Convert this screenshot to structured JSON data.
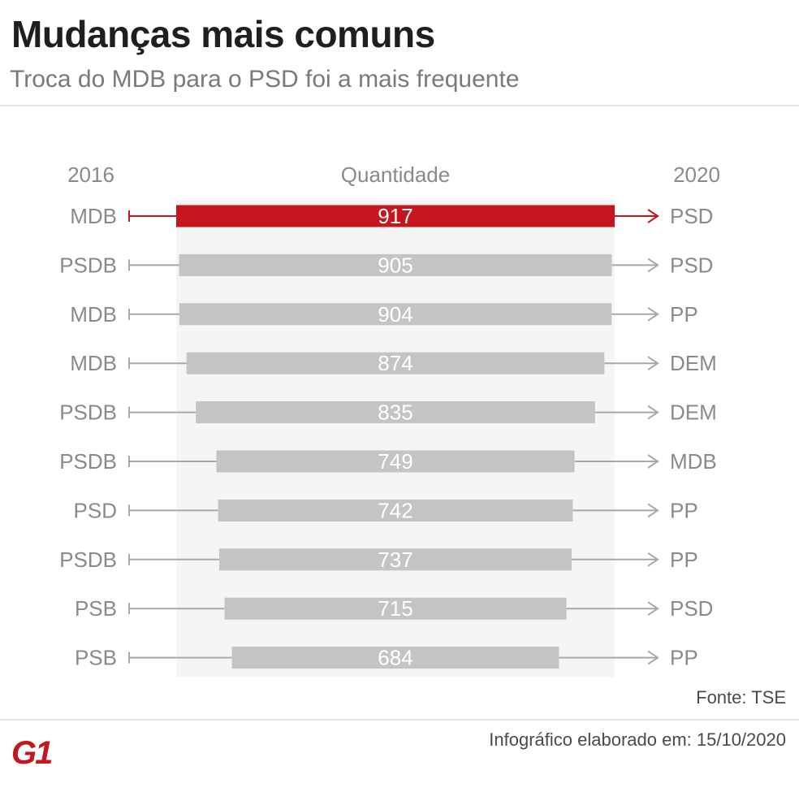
{
  "header": {
    "title": "Mudanças mais comuns",
    "subtitle": "Troca do MDB para o PSD foi a mais frequente"
  },
  "chart_data": {
    "type": "bar",
    "column_headers": {
      "left": "2016",
      "center": "Quantidade",
      "right": "2020"
    },
    "rows": [
      {
        "from": "MDB",
        "to": "PSD",
        "value": 917,
        "highlight": true
      },
      {
        "from": "PSDB",
        "to": "PSD",
        "value": 905,
        "highlight": false
      },
      {
        "from": "MDB",
        "to": "PP",
        "value": 904,
        "highlight": false
      },
      {
        "from": "MDB",
        "to": "DEM",
        "value": 874,
        "highlight": false
      },
      {
        "from": "PSDB",
        "to": "DEM",
        "value": 835,
        "highlight": false
      },
      {
        "from": "PSDB",
        "to": "MDB",
        "value": 749,
        "highlight": false
      },
      {
        "from": "PSD",
        "to": "PP",
        "value": 742,
        "highlight": false
      },
      {
        "from": "PSDB",
        "to": "PP",
        "value": 737,
        "highlight": false
      },
      {
        "from": "PSB",
        "to": "PSD",
        "value": 715,
        "highlight": false
      },
      {
        "from": "PSB",
        "to": "PP",
        "value": 684,
        "highlight": false
      }
    ],
    "colors": {
      "highlight": "#c4161c",
      "bar": "#c4c4c4",
      "connector": "#a9a9a9",
      "label": "#8a8a8a",
      "panel": "#f5f5f5",
      "value_text": "#ffffff"
    }
  },
  "footer": {
    "source": "Fonte: TSE",
    "date_label": "Infográfico elaborado em: 15/10/2020",
    "logo_text": "G1"
  }
}
